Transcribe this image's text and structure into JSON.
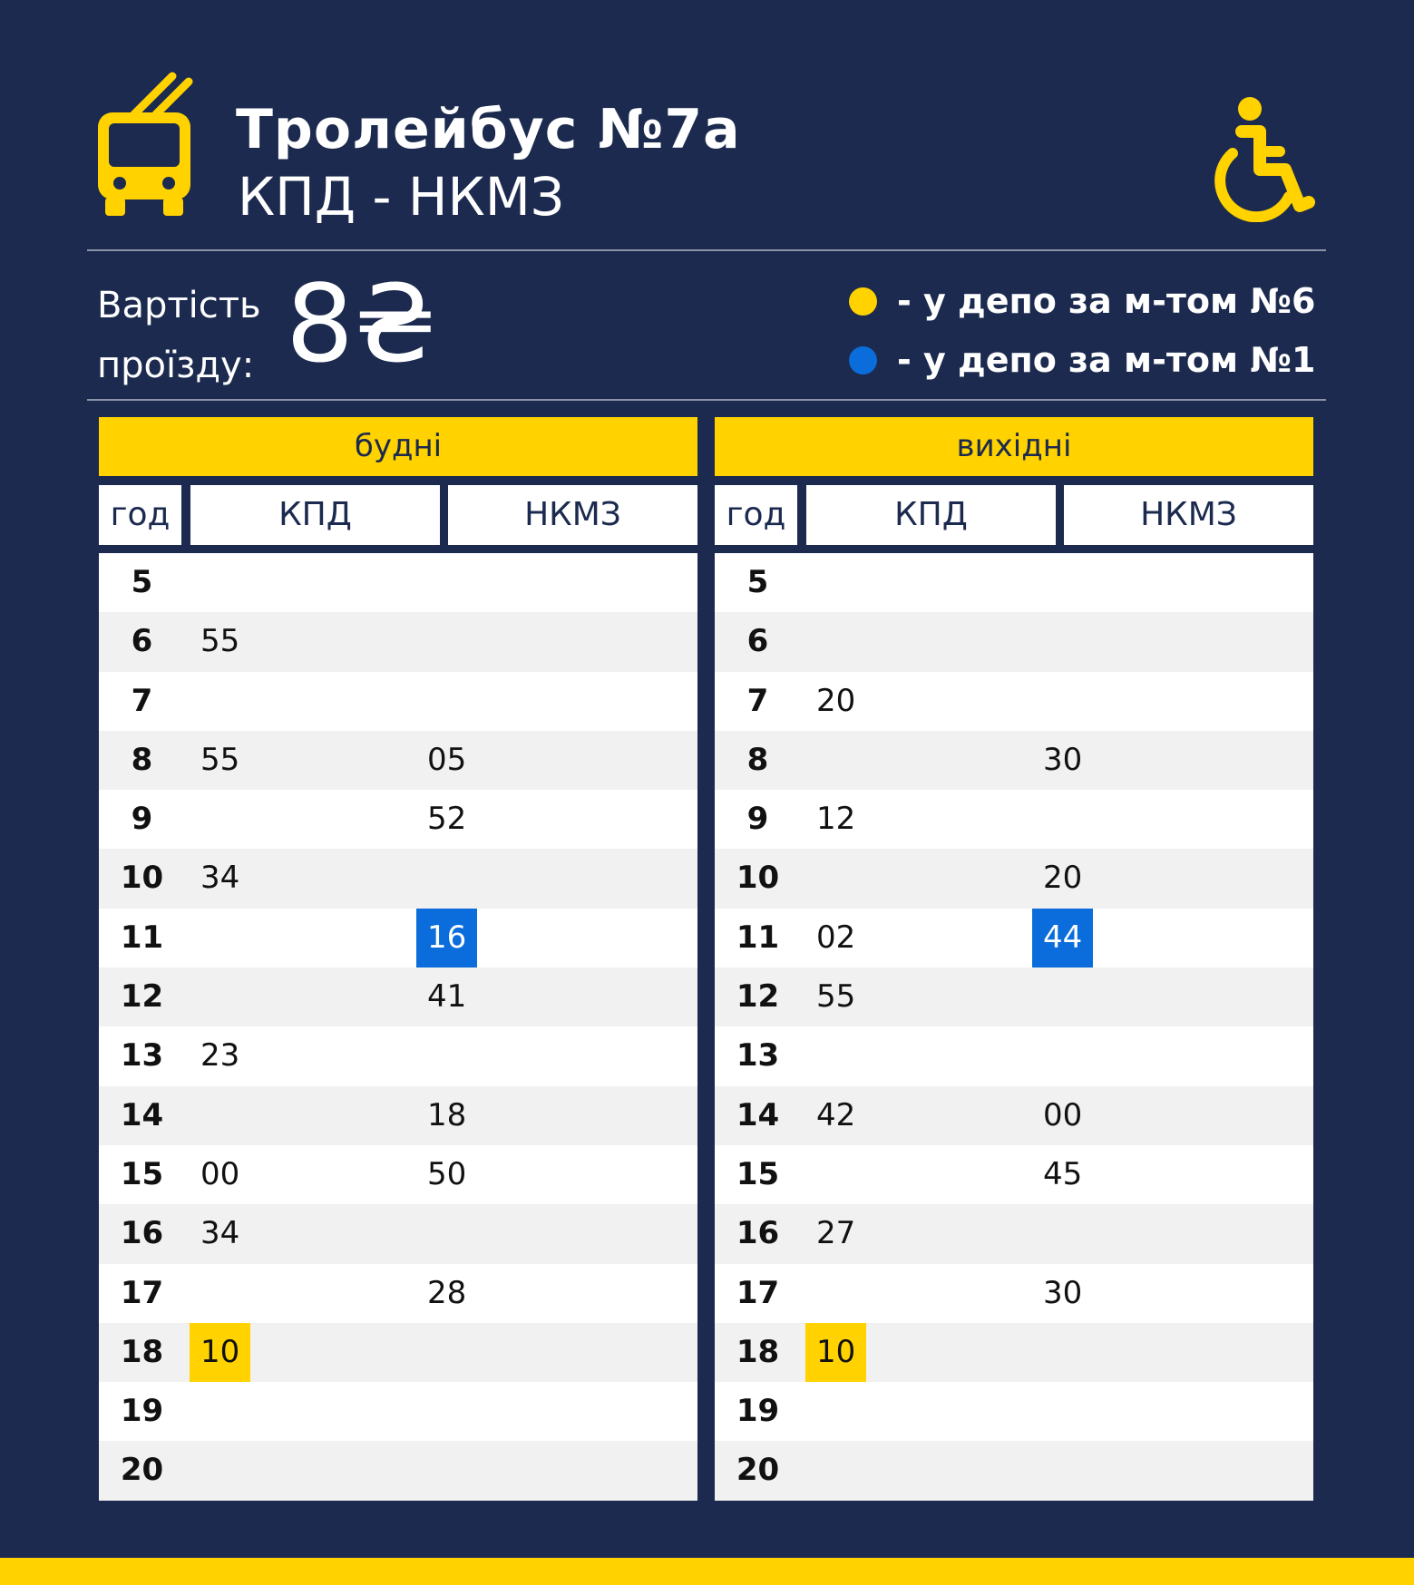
{
  "header": {
    "title": "Тролейбус №7а",
    "route": "КПД - НКМЗ",
    "bus_icon": "trolleybus-icon",
    "accessibility_icon": "wheelchair-icon"
  },
  "fare": {
    "label_line1": "Вартість",
    "label_line2": "проїзду:",
    "value": "8₴"
  },
  "legend": [
    {
      "color": "#ffd200",
      "text": "- у депо за м-том №6"
    },
    {
      "color": "#0a6ddb",
      "text": "- у депо за м-том №1"
    }
  ],
  "colors": {
    "background": "#1b2a4e",
    "accent": "#ffd200",
    "blue": "#0a6ddb"
  },
  "tables": [
    {
      "title": "будні",
      "headers": {
        "hour": "год",
        "a": "КПД",
        "b": "НКМЗ"
      },
      "rows": [
        {
          "h": "5",
          "a": "",
          "b": ""
        },
        {
          "h": "6",
          "a": "55",
          "b": ""
        },
        {
          "h": "7",
          "a": "",
          "b": ""
        },
        {
          "h": "8",
          "a": "55",
          "b": "05"
        },
        {
          "h": "9",
          "a": "",
          "b": "52"
        },
        {
          "h": "10",
          "a": "34",
          "b": ""
        },
        {
          "h": "11",
          "a": "",
          "b": "16",
          "b_hl": "blue"
        },
        {
          "h": "12",
          "a": "",
          "b": "41"
        },
        {
          "h": "13",
          "a": "23",
          "b": ""
        },
        {
          "h": "14",
          "a": "",
          "b": "18"
        },
        {
          "h": "15",
          "a": "00",
          "b": "50"
        },
        {
          "h": "16",
          "a": "34",
          "b": ""
        },
        {
          "h": "17",
          "a": "",
          "b": "28"
        },
        {
          "h": "18",
          "a": "10",
          "a_hl": "yellow",
          "b": ""
        },
        {
          "h": "19",
          "a": "",
          "b": ""
        },
        {
          "h": "20",
          "a": "",
          "b": ""
        }
      ]
    },
    {
      "title": "вихідні",
      "headers": {
        "hour": "год",
        "a": "КПД",
        "b": "НКМЗ"
      },
      "rows": [
        {
          "h": "5",
          "a": "",
          "b": ""
        },
        {
          "h": "6",
          "a": "",
          "b": ""
        },
        {
          "h": "7",
          "a": "20",
          "b": ""
        },
        {
          "h": "8",
          "a": "",
          "b": "30"
        },
        {
          "h": "9",
          "a": "12",
          "b": ""
        },
        {
          "h": "10",
          "a": "",
          "b": "20"
        },
        {
          "h": "11",
          "a": "02",
          "b": "44",
          "b_hl": "blue"
        },
        {
          "h": "12",
          "a": "55",
          "b": ""
        },
        {
          "h": "13",
          "a": "",
          "b": ""
        },
        {
          "h": "14",
          "a": "42",
          "b": "00"
        },
        {
          "h": "15",
          "a": "",
          "b": "45"
        },
        {
          "h": "16",
          "a": "27",
          "b": ""
        },
        {
          "h": "17",
          "a": "",
          "b": "30"
        },
        {
          "h": "18",
          "a": "10",
          "a_hl": "yellow",
          "b": ""
        },
        {
          "h": "19",
          "a": "",
          "b": ""
        },
        {
          "h": "20",
          "a": "",
          "b": ""
        }
      ]
    }
  ]
}
